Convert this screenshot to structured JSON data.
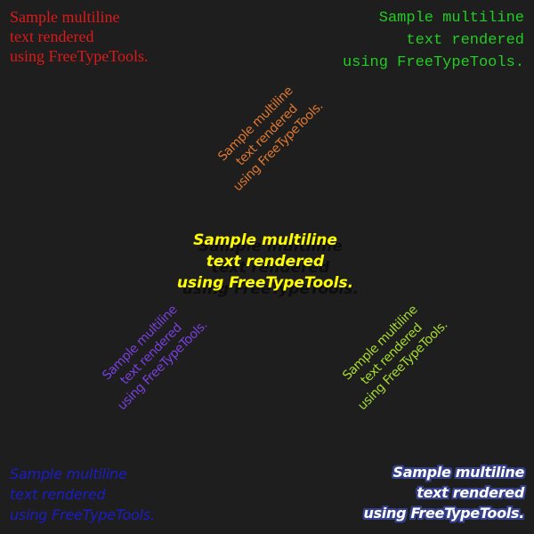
{
  "colors": {
    "background": "#1e1e1e",
    "red": "#e01818",
    "green": "#22cc22",
    "orange": "#e07830",
    "yellow": "#ffff00",
    "purple": "#7a40e0",
    "lime": "#a8dc30",
    "blue": "#1c1cc8",
    "white": "#ffffff",
    "outline": "#34408c"
  },
  "samples": {
    "top_left": {
      "lines": [
        "Sample multiline",
        "text rendered",
        "using FreeTypeTools."
      ]
    },
    "top_right": {
      "lines": [
        "Sample multiline",
        "text rendered",
        "using FreeTypeTools."
      ]
    },
    "rotated_orange": {
      "lines": [
        "Sample multiline",
        "text rendered",
        "using FreeTypeTools."
      ]
    },
    "center": {
      "lines": [
        "Sample multiline",
        "text rendered",
        "using FreeTypeTools."
      ]
    },
    "rotated_purple": {
      "lines": [
        "Sample multiline",
        "text rendered",
        "using FreeTypeTools."
      ]
    },
    "rotated_lime": {
      "lines": [
        "Sample multiline",
        "text rendered",
        "using FreeTypeTools."
      ]
    },
    "bottom_left": {
      "lines": [
        "Sample multiline",
        "text rendered",
        "using FreeTypeTools."
      ]
    },
    "bottom_right": {
      "lines": [
        "Sample multiline",
        "text rendered",
        "using FreeTypeTools."
      ]
    }
  }
}
